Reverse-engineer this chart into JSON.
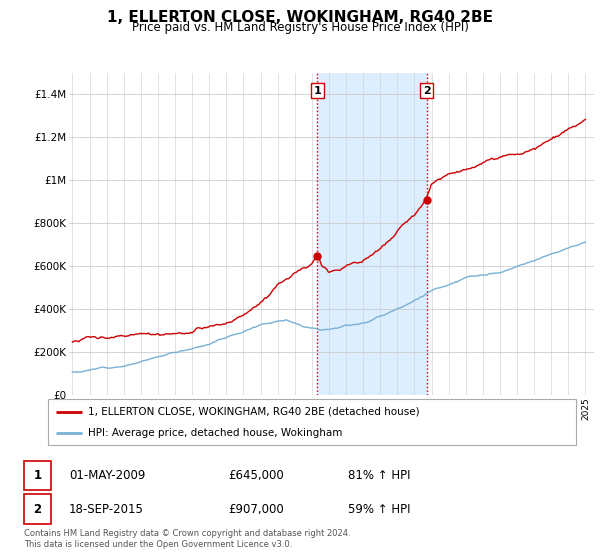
{
  "title": "1, ELLERTON CLOSE, WOKINGHAM, RG40 2BE",
  "subtitle": "Price paid vs. HM Land Registry's House Price Index (HPI)",
  "ylim": [
    0,
    1500000
  ],
  "yticks": [
    0,
    200000,
    400000,
    600000,
    800000,
    1000000,
    1200000,
    1400000
  ],
  "ytick_labels": [
    "£0",
    "£200K",
    "£400K",
    "£600K",
    "£800K",
    "£1M",
    "£1.2M",
    "£1.4M"
  ],
  "house_color": "#cc0000",
  "hpi_color": "#7ab0d4",
  "shade_color": "#ddeeff",
  "transaction1_date": 2009.33,
  "transaction1_value": 645000,
  "transaction2_date": 2015.72,
  "transaction2_value": 907000,
  "legend_house": "1, ELLERTON CLOSE, WOKINGHAM, RG40 2BE (detached house)",
  "legend_hpi": "HPI: Average price, detached house, Wokingham",
  "table_row1": [
    "1",
    "01-MAY-2009",
    "£645,000",
    "81% ↑ HPI"
  ],
  "table_row2": [
    "2",
    "18-SEP-2015",
    "£907,000",
    "59% ↑ HPI"
  ],
  "footer": "Contains HM Land Registry data © Crown copyright and database right 2024.\nThis data is licensed under the Open Government Licence v3.0.",
  "xmin": 1994.8,
  "xmax": 2025.5
}
